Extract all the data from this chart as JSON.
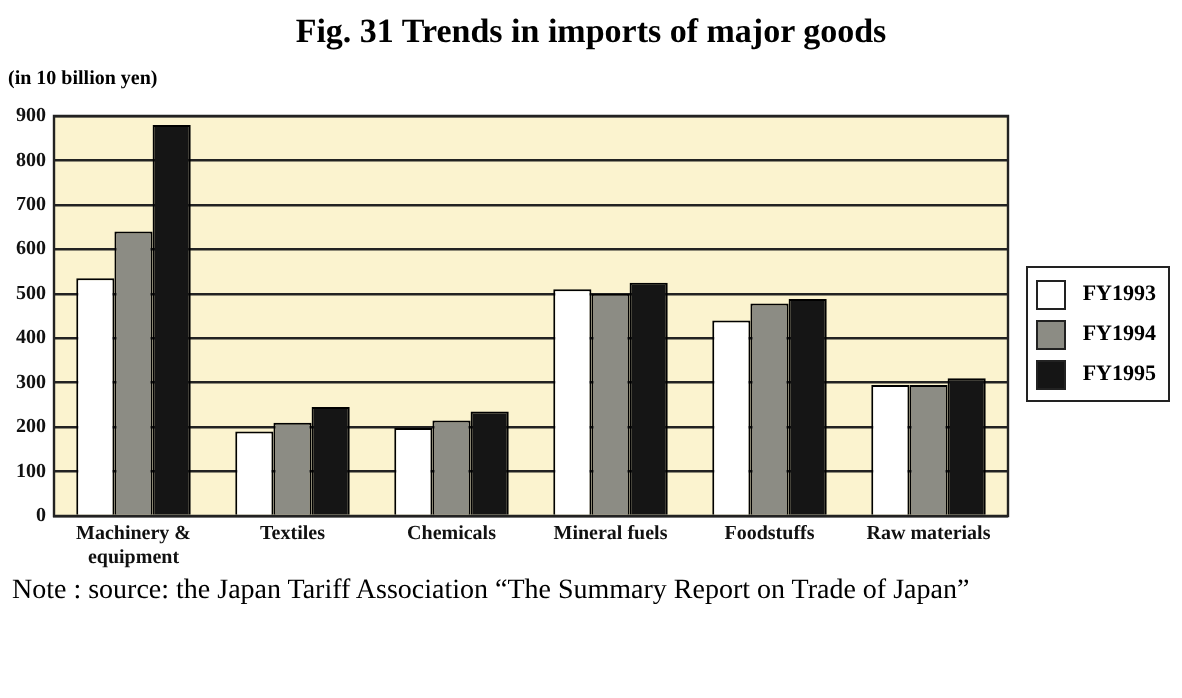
{
  "chart_data": {
    "type": "bar",
    "title": "Fig. 31 Trends in imports of major goods",
    "ylabel": "(in 10 billion yen)",
    "categories": [
      "Machinery & equipment",
      "Textiles",
      "Chemicals",
      "Mineral fuels",
      "Foodstuffs",
      "Raw materials"
    ],
    "series": [
      {
        "name": "FY1993",
        "color": "#ffffff",
        "values": [
          535,
          190,
          198,
          510,
          440,
          295
        ]
      },
      {
        "name": "FY1994",
        "color": "#8c8c84",
        "values": [
          640,
          210,
          215,
          500,
          478,
          295
        ]
      },
      {
        "name": "FY1995",
        "color": "#151515",
        "values": [
          880,
          245,
          235,
          525,
          488,
          310
        ]
      }
    ],
    "ylim": [
      0,
      900
    ],
    "yticks": [
      0,
      100,
      200,
      300,
      400,
      500,
      600,
      700,
      800,
      900
    ],
    "grid": "y",
    "legend": "right",
    "annotations": [
      "Note : source: the Japan Tariff Association “The Summary Report on Trade of Japan”"
    ]
  }
}
